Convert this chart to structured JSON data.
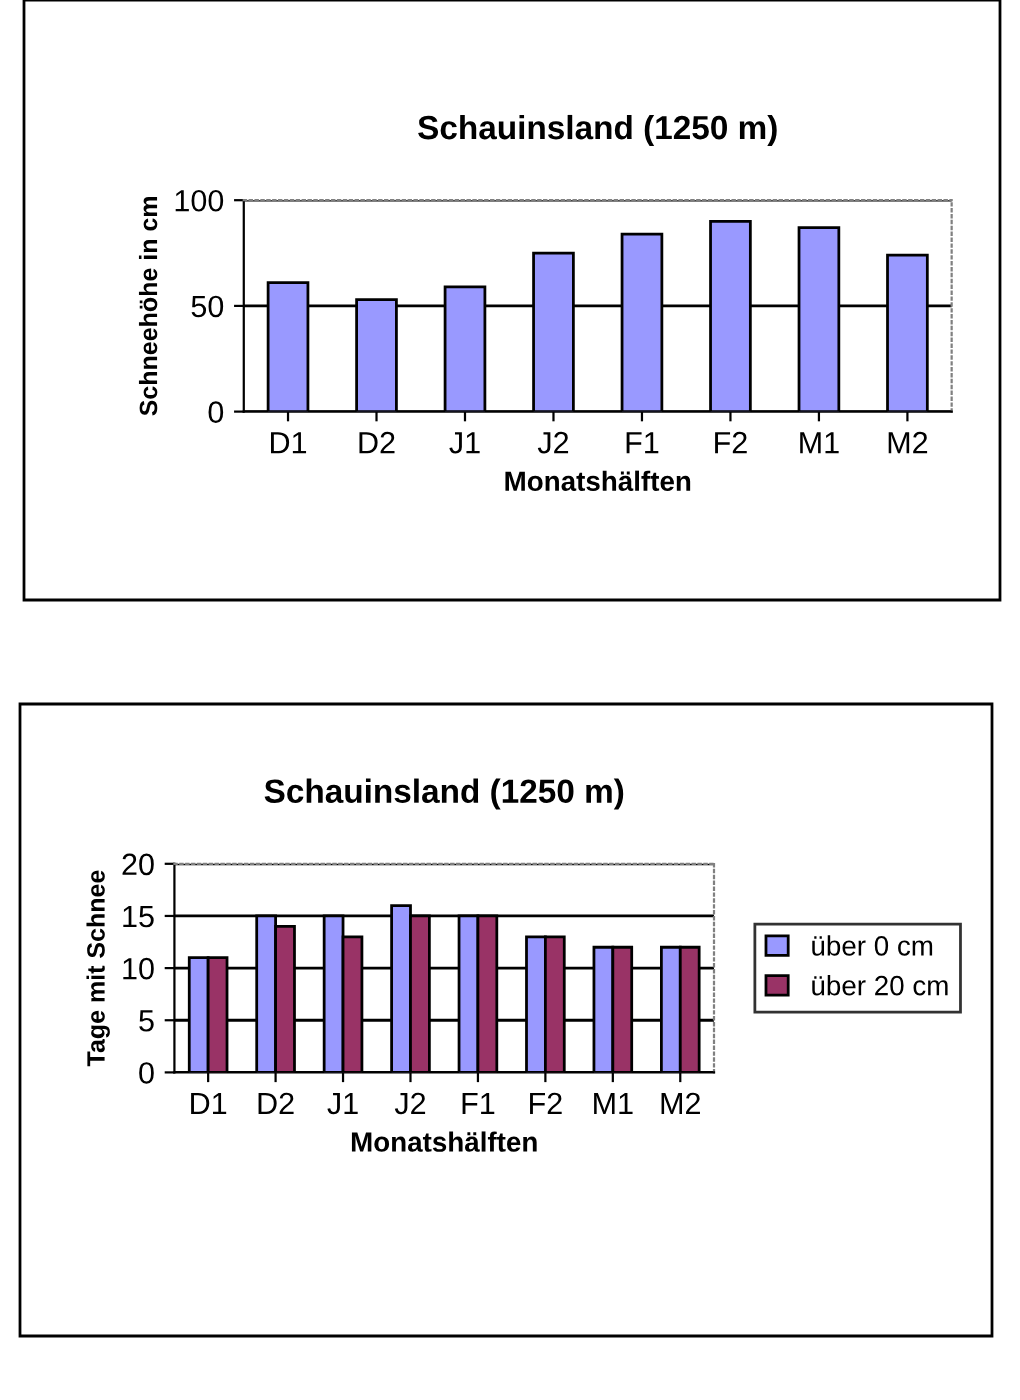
{
  "chart_data": [
    {
      "type": "bar",
      "title": "Schauinsland (1250 m)",
      "xlabel": "Monatshälften",
      "ylabel": "Schneehöhe in cm",
      "categories": [
        "D1",
        "D2",
        "J1",
        "J2",
        "F1",
        "F2",
        "M1",
        "M2"
      ],
      "series": [
        {
          "color": "#9999ff",
          "values": [
            61,
            53,
            59,
            75,
            84,
            90,
            87,
            74
          ]
        }
      ],
      "ylim": [
        0,
        100
      ],
      "yticks": [
        0,
        50,
        100
      ],
      "grid": "y",
      "legend": false
    },
    {
      "type": "bar",
      "title": "Schauinsland (1250 m)",
      "xlabel": "Monatshälften",
      "ylabel": "Tage mit Schnee",
      "categories": [
        "D1",
        "D2",
        "J1",
        "J2",
        "F1",
        "F2",
        "M1",
        "M2"
      ],
      "series": [
        {
          "name": "über 0 cm",
          "color": "#9999ff",
          "values": [
            11,
            15,
            15,
            16,
            15,
            13,
            12,
            12
          ]
        },
        {
          "name": "über 20 cm",
          "color": "#993366",
          "values": [
            11,
            14,
            13,
            15,
            15,
            13,
            12,
            12
          ]
        }
      ],
      "ylim": [
        0,
        20
      ],
      "yticks": [
        0,
        5,
        10,
        15,
        20
      ],
      "grid": "y",
      "legend": "right"
    }
  ]
}
